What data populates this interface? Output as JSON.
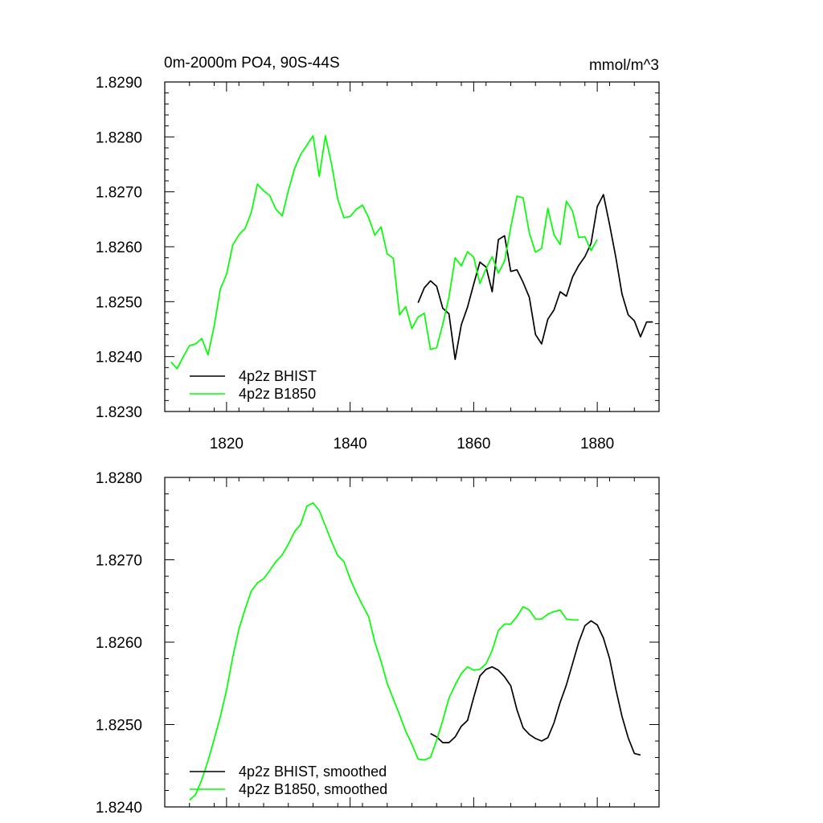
{
  "colors": {
    "bhist": "#000000",
    "b1850": "#00ff00",
    "axis": "#000000"
  },
  "chart_data": [
    {
      "type": "line",
      "title_left": "0m-2000m PO4, 90S-44S",
      "title_right": "mmol/m^3",
      "xlim": [
        1810,
        1890
      ],
      "ylim": [
        1.823,
        1.829
      ],
      "x_ticks": [
        1820,
        1840,
        1860,
        1880
      ],
      "x_tick_labels": [
        "1820",
        "1840",
        "1860",
        "1880"
      ],
      "y_ticks": [
        1.823,
        1.824,
        1.825,
        1.826,
        1.827,
        1.828,
        1.829
      ],
      "y_tick_labels": [
        "1.8230",
        "1.8240",
        "1.8250",
        "1.8260",
        "1.8270",
        "1.8280",
        "1.8290"
      ],
      "legend_position": "bottom-left",
      "series": [
        {
          "name": "4p2z BHIST",
          "color": "#000000",
          "x": [
            1851,
            1852,
            1853,
            1854,
            1855,
            1856,
            1857,
            1858,
            1859,
            1860,
            1861,
            1862,
            1863,
            1864,
            1865,
            1866,
            1867,
            1868,
            1869,
            1870,
            1871,
            1872,
            1873,
            1874,
            1875,
            1876,
            1877,
            1878,
            1879,
            1880,
            1881,
            1882,
            1883,
            1884,
            1885,
            1886,
            1887,
            1888,
            1889
          ],
          "y": [
            1.82498,
            1.82525,
            1.82538,
            1.82528,
            1.82488,
            1.82478,
            1.82395,
            1.82458,
            1.8249,
            1.82532,
            1.82572,
            1.82563,
            1.82518,
            1.82613,
            1.8262,
            1.82555,
            1.82558,
            1.82535,
            1.82508,
            1.8244,
            1.82423,
            1.82468,
            1.82485,
            1.82518,
            1.8251,
            1.82545,
            1.82566,
            1.82582,
            1.82606,
            1.82673,
            1.82695,
            1.8264,
            1.82581,
            1.82514,
            1.82476,
            1.82465,
            1.82436,
            1.82463,
            1.82463
          ]
        },
        {
          "name": "4p2z B1850",
          "color": "#00ff00",
          "x": [
            1811,
            1812,
            1813,
            1814,
            1815,
            1816,
            1817,
            1818,
            1819,
            1820,
            1821,
            1822,
            1823,
            1824,
            1825,
            1826,
            1827,
            1828,
            1829,
            1830,
            1831,
            1832,
            1833,
            1834,
            1835,
            1836,
            1837,
            1838,
            1839,
            1840,
            1841,
            1842,
            1843,
            1844,
            1845,
            1846,
            1847,
            1848,
            1849,
            1850,
            1851,
            1852,
            1853,
            1854,
            1855,
            1856,
            1857,
            1858,
            1859,
            1860,
            1861,
            1862,
            1863,
            1864,
            1865,
            1866,
            1867,
            1868,
            1869,
            1870,
            1871,
            1872,
            1873,
            1874,
            1875,
            1876,
            1877,
            1878,
            1879,
            1880
          ],
          "y": [
            1.8239,
            1.82378,
            1.824,
            1.8242,
            1.82423,
            1.82433,
            1.82403,
            1.82456,
            1.82523,
            1.8255,
            1.82603,
            1.82622,
            1.82633,
            1.82662,
            1.82714,
            1.82702,
            1.82693,
            1.82668,
            1.82656,
            1.82702,
            1.82742,
            1.82768,
            1.82785,
            1.82802,
            1.82728,
            1.82802,
            1.8275,
            1.82686,
            1.82653,
            1.82655,
            1.82668,
            1.82676,
            1.82653,
            1.82621,
            1.82636,
            1.82587,
            1.82579,
            1.82476,
            1.82491,
            1.82451,
            1.82472,
            1.82479,
            1.82413,
            1.82416,
            1.82459,
            1.82508,
            1.8258,
            1.82565,
            1.82591,
            1.82581,
            1.82533,
            1.8256,
            1.82582,
            1.82552,
            1.82574,
            1.82635,
            1.82692,
            1.82689,
            1.82625,
            1.8259,
            1.82597,
            1.8267,
            1.82622,
            1.82604,
            1.82683,
            1.82665,
            1.82617,
            1.82618,
            1.82593,
            1.82613
          ]
        }
      ]
    },
    {
      "type": "line",
      "xlim": [
        1810,
        1890
      ],
      "ylim": [
        1.824,
        1.828
      ],
      "x_ticks": [
        1820,
        1840,
        1860,
        1880
      ],
      "y_ticks": [
        1.824,
        1.825,
        1.826,
        1.827,
        1.828
      ],
      "y_tick_labels": [
        "1.8240",
        "1.8250",
        "1.8260",
        "1.8270",
        "1.8280"
      ],
      "legend_position": "bottom-left",
      "series": [
        {
          "name": "4p2z BHIST, smoothed",
          "color": "#000000",
          "x": [
            1853,
            1854,
            1855,
            1856,
            1857,
            1858,
            1859,
            1860,
            1861,
            1862,
            1863,
            1864,
            1865,
            1866,
            1867,
            1868,
            1869,
            1870,
            1871,
            1872,
            1873,
            1874,
            1875,
            1876,
            1877,
            1878,
            1879,
            1880,
            1881,
            1882,
            1883,
            1884,
            1885,
            1886,
            1887
          ],
          "y": [
            1.82489,
            1.82485,
            1.82478,
            1.82478,
            1.82485,
            1.82498,
            1.82505,
            1.82533,
            1.82559,
            1.82567,
            1.8257,
            1.82566,
            1.82558,
            1.82547,
            1.82518,
            1.82496,
            1.82488,
            1.82483,
            1.8248,
            1.82484,
            1.82502,
            1.82527,
            1.82548,
            1.82574,
            1.826,
            1.8262,
            1.82626,
            1.82621,
            1.82605,
            1.8258,
            1.82543,
            1.8251,
            1.82484,
            1.82465,
            1.82463
          ]
        },
        {
          "name": "4p2z B1850, smoothed",
          "color": "#00ff00",
          "x": [
            1814,
            1815,
            1816,
            1817,
            1818,
            1819,
            1820,
            1821,
            1822,
            1823,
            1824,
            1825,
            1826,
            1827,
            1828,
            1829,
            1830,
            1831,
            1832,
            1833,
            1834,
            1835,
            1836,
            1837,
            1838,
            1839,
            1840,
            1841,
            1842,
            1843,
            1844,
            1845,
            1846,
            1847,
            1848,
            1849,
            1850,
            1851,
            1852,
            1853,
            1854,
            1855,
            1856,
            1857,
            1858,
            1859,
            1860,
            1861,
            1862,
            1863,
            1864,
            1865,
            1866,
            1867,
            1868,
            1869,
            1870,
            1871,
            1872,
            1873,
            1874,
            1875,
            1876,
            1877
          ],
          "y": [
            1.82408,
            1.82415,
            1.82433,
            1.82456,
            1.82482,
            1.8251,
            1.82542,
            1.82582,
            1.82616,
            1.8264,
            1.82662,
            1.82672,
            1.82677,
            1.82687,
            1.82698,
            1.82706,
            1.82719,
            1.82734,
            1.82743,
            1.82765,
            1.82769,
            1.8276,
            1.82741,
            1.82722,
            1.82705,
            1.82698,
            1.82677,
            1.8266,
            1.82645,
            1.82631,
            1.826,
            1.82577,
            1.8255,
            1.82531,
            1.82512,
            1.82492,
            1.82476,
            1.82458,
            1.82457,
            1.8246,
            1.82481,
            1.82505,
            1.82532,
            1.82548,
            1.82562,
            1.8257,
            1.82566,
            1.82567,
            1.82574,
            1.8259,
            1.82614,
            1.82622,
            1.82622,
            1.82631,
            1.82643,
            1.82639,
            1.82628,
            1.82628,
            1.82634,
            1.82637,
            1.82639,
            1.82628,
            1.82627,
            1.82627
          ]
        }
      ]
    }
  ]
}
